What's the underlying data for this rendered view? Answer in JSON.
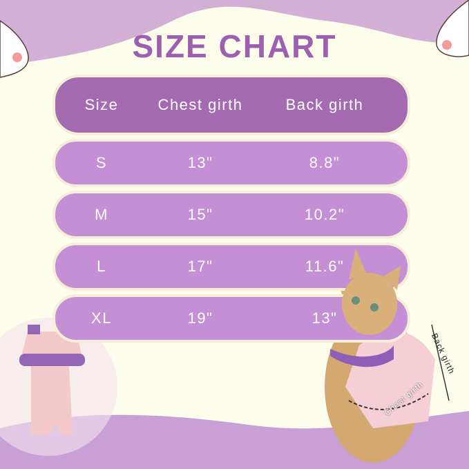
{
  "title": "SIZE CHART",
  "table": {
    "headers": [
      "Size",
      "Chest girth",
      "Back girth"
    ],
    "rows": [
      [
        "S",
        "13\"",
        "8.8\""
      ],
      [
        "M",
        "15\"",
        "10.2\""
      ],
      [
        "L",
        "17\"",
        "11.6\""
      ],
      [
        "XL",
        "19\"",
        "13\""
      ]
    ]
  },
  "annotations": {
    "back": "Back girth",
    "chest": "Chest girth"
  },
  "colors": {
    "title": "#9d5fb0",
    "header_row": "#a56bb1",
    "data_row": "#c48fd4",
    "background": "#fdfdec"
  }
}
